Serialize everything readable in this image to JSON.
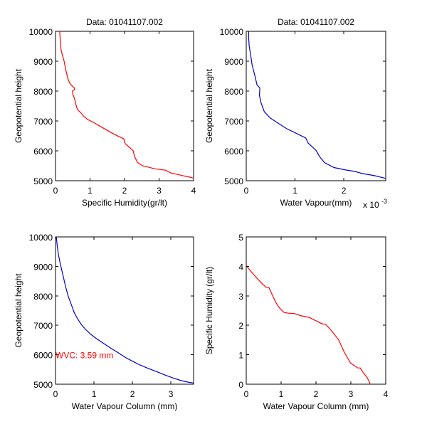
{
  "figure": {
    "background": "#ffffff",
    "panel_count": 4
  },
  "chart_data": [
    {
      "id": "specific-humidity-profile",
      "type": "line",
      "title": "Data: 01041107.002",
      "xlabel": "Specific Humidity(gr/lt)",
      "ylabel": "Geopotential height",
      "xlim": [
        0,
        4
      ],
      "ylim": [
        5000,
        10000
      ],
      "xticks": [
        0,
        1,
        2,
        3,
        4
      ],
      "xtick_labels": [
        "0",
        "1",
        "2",
        "3",
        "4"
      ],
      "yticks": [
        5000,
        6000,
        7000,
        8000,
        9000,
        10000
      ],
      "ytick_labels": [
        "5000",
        "6000",
        "7000",
        "8000",
        "9000",
        "10000"
      ],
      "grid": false,
      "series": [
        {
          "name": "specific humidity",
          "color": "#ff0000",
          "x": [
            0.12,
            0.14,
            0.16,
            0.2,
            0.25,
            0.3,
            0.37,
            0.42,
            0.5,
            0.55,
            0.55,
            0.49,
            0.5,
            0.55,
            0.58,
            0.62,
            0.66,
            0.72,
            0.82,
            0.93,
            1.13,
            1.34,
            1.63,
            1.83,
            1.98,
            2.0,
            2.02,
            2.14,
            2.25,
            2.29,
            2.33,
            2.37,
            2.45,
            2.52,
            2.7,
            2.87,
            3.2,
            3.25,
            3.34,
            3.5,
            3.69,
            3.85,
            3.98
          ],
          "y": [
            10000,
            9700,
            9380,
            9200,
            9000,
            8700,
            8380,
            8250,
            8150,
            8100,
            8050,
            8000,
            7900,
            7750,
            7600,
            7430,
            7350,
            7290,
            7150,
            7050,
            6930,
            6790,
            6600,
            6480,
            6400,
            6300,
            6240,
            6120,
            6000,
            5810,
            5720,
            5620,
            5550,
            5500,
            5450,
            5400,
            5350,
            5310,
            5260,
            5220,
            5170,
            5130,
            5090
          ]
        }
      ]
    },
    {
      "id": "water-vapour-profile",
      "type": "line",
      "title": "Data: 01041107.002",
      "xlabel": "Water Vapour(mm)",
      "xlabel_multiplier": "x 10",
      "xlabel_exponent": "-3",
      "ylabel": "Geopotential height",
      "xlim": [
        0,
        2.86
      ],
      "x_scale_factor": 0.001,
      "ylim": [
        5000,
        10000
      ],
      "xticks": [
        0,
        1,
        2
      ],
      "xtick_labels": [
        "0",
        "1",
        "2"
      ],
      "yticks": [
        5000,
        6000,
        7000,
        8000,
        9000,
        10000
      ],
      "ytick_labels": [
        "5000",
        "6000",
        "7000",
        "8000",
        "9000",
        "10000"
      ],
      "grid": false,
      "series": [
        {
          "name": "water vapour",
          "color": "#0000cc",
          "x": [
            0.05,
            0.05,
            0.06,
            0.09,
            0.12,
            0.18,
            0.22,
            0.28,
            0.27,
            0.3,
            0.37,
            0.49,
            0.63,
            0.83,
            1.02,
            1.22,
            1.27,
            1.43,
            1.51,
            1.61,
            1.8,
            2.04,
            2.23,
            2.38,
            2.63,
            2.85
          ],
          "y": [
            10000,
            9800,
            9520,
            9210,
            8880,
            8500,
            8210,
            8100,
            7860,
            7620,
            7310,
            7100,
            6950,
            6740,
            6590,
            6430,
            6260,
            6020,
            5790,
            5600,
            5440,
            5360,
            5310,
            5240,
            5170,
            5080
          ]
        }
      ]
    },
    {
      "id": "water-vapour-column-height",
      "type": "line",
      "title": "",
      "xlabel": "Water Vapour Column (mm)",
      "ylabel": "Geopotential height",
      "xlim": [
        0,
        3.59
      ],
      "ylim": [
        5000,
        10000
      ],
      "xticks": [
        0,
        1,
        2,
        3
      ],
      "xtick_labels": [
        "0",
        "1",
        "2",
        "3"
      ],
      "yticks": [
        5000,
        6000,
        7000,
        8000,
        9000,
        10000
      ],
      "ytick_labels": [
        "5000",
        "6000",
        "7000",
        "8000",
        "9000",
        "10000"
      ],
      "grid": false,
      "annotation": {
        "text": "WVC: 3.59 mm",
        "x": 0,
        "y": 6000,
        "color": "#ff0000"
      },
      "series": [
        {
          "name": "cumulative water vapour column",
          "color": "#0000cc",
          "x": [
            0.02,
            0.05,
            0.08,
            0.12,
            0.17,
            0.22,
            0.27,
            0.33,
            0.41,
            0.49,
            0.58,
            0.67,
            0.78,
            0.91,
            1.05,
            1.21,
            1.42,
            1.63,
            1.8,
            2.0,
            2.2,
            2.42,
            2.64,
            2.85,
            3.06,
            3.27,
            3.45,
            3.58
          ],
          "y": [
            10000,
            9640,
            9380,
            9110,
            8830,
            8550,
            8270,
            7990,
            7700,
            7420,
            7210,
            7030,
            6860,
            6700,
            6560,
            6420,
            6240,
            6070,
            5920,
            5780,
            5650,
            5530,
            5420,
            5310,
            5210,
            5120,
            5070,
            5040
          ]
        }
      ]
    },
    {
      "id": "humidity-vs-column",
      "type": "line",
      "title": "",
      "xlabel": "Water Vapour Column (mm)",
      "ylabel": "Specific Humidity (gr/lt)",
      "xlim": [
        0,
        4
      ],
      "ylim": [
        0,
        5
      ],
      "xticks": [
        0,
        1,
        2,
        3,
        4
      ],
      "xtick_labels": [
        "0",
        "1",
        "2",
        "3",
        "4"
      ],
      "yticks": [
        0,
        1,
        2,
        3,
        4,
        5
      ],
      "ytick_labels": [
        "0",
        "1",
        "2",
        "3",
        "4",
        "5"
      ],
      "grid": false,
      "series": [
        {
          "name": "specific humidity",
          "color": "#ff0000",
          "x": [
            0.0,
            0.1,
            0.29,
            0.45,
            0.57,
            0.65,
            0.72,
            0.78,
            0.86,
            0.96,
            1.08,
            1.2,
            1.37,
            1.59,
            1.8,
            1.92,
            2.04,
            2.15,
            2.28,
            2.45,
            2.65,
            2.81,
            2.99,
            3.1,
            3.2,
            3.27,
            3.35,
            3.47,
            3.56
          ],
          "y": [
            4.03,
            3.88,
            3.62,
            3.42,
            3.29,
            3.28,
            3.1,
            2.95,
            2.75,
            2.58,
            2.44,
            2.41,
            2.4,
            2.32,
            2.27,
            2.2,
            2.13,
            2.06,
            2.03,
            1.81,
            1.5,
            1.09,
            0.72,
            0.63,
            0.55,
            0.55,
            0.4,
            0.22,
            0.0
          ]
        }
      ]
    }
  ]
}
